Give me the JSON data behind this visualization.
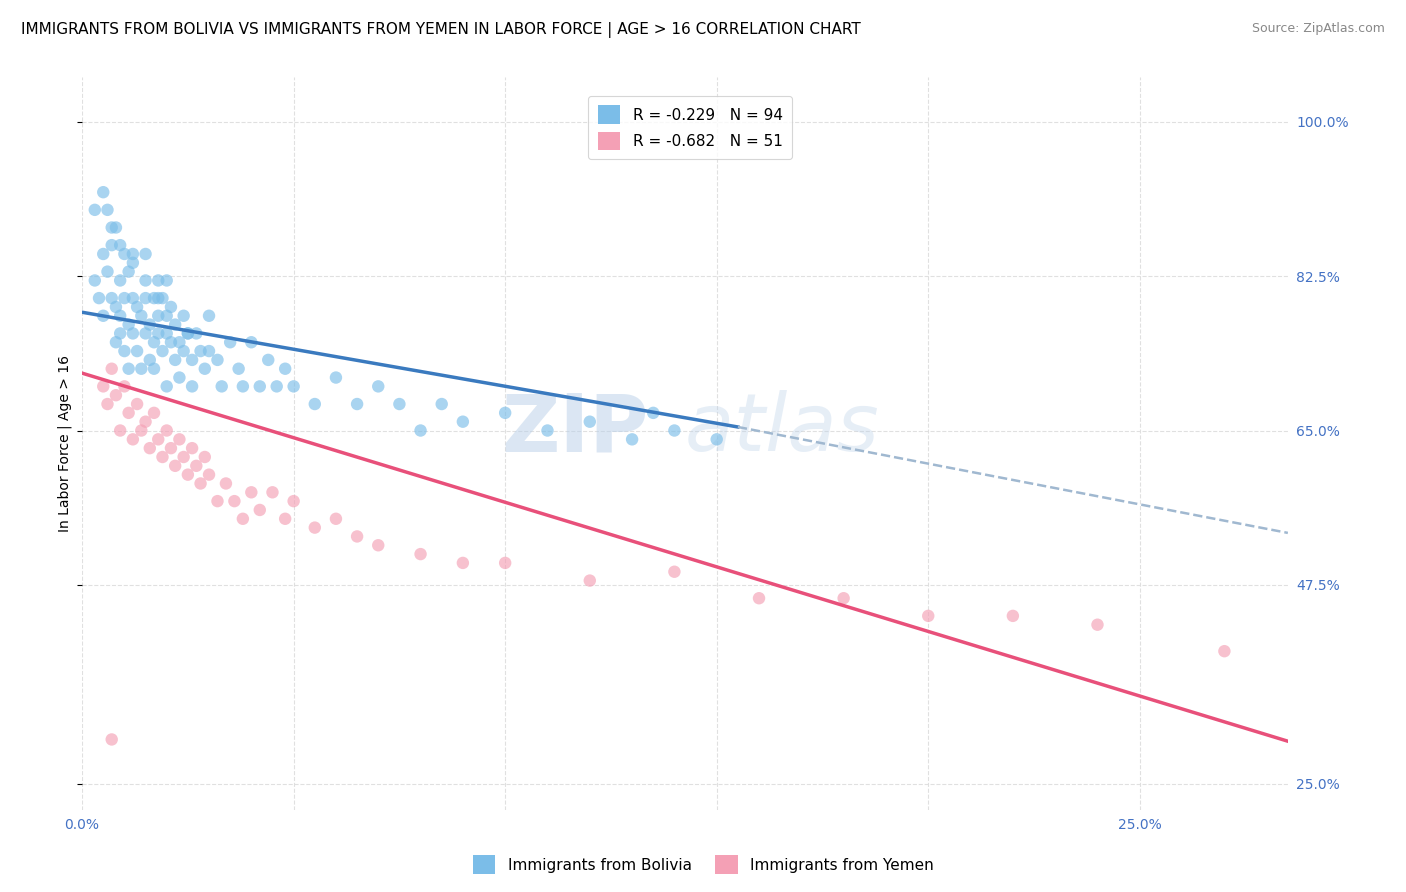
{
  "title": "IMMIGRANTS FROM BOLIVIA VS IMMIGRANTS FROM YEMEN IN LABOR FORCE | AGE > 16 CORRELATION CHART",
  "source": "Source: ZipAtlas.com",
  "ylabel": "In Labor Force | Age > 16",
  "right_yticks": [
    0.25,
    0.475,
    0.65,
    0.825,
    1.0
  ],
  "right_yticklabels": [
    "25.0%",
    "47.5%",
    "65.0%",
    "82.5%",
    "100.0%"
  ],
  "bottom_xticks": [
    0.0,
    0.05,
    0.1,
    0.15,
    0.2,
    0.25
  ],
  "xmin": 0.0,
  "xmax": 0.285,
  "ymin": 0.22,
  "ymax": 1.05,
  "bolivia_color": "#7bbde8",
  "yemen_color": "#f4a0b5",
  "bolivia_line_color": "#3a7abf",
  "yemen_line_color": "#e8507a",
  "dashed_line_color": "#a0b8d0",
  "legend_R_bolivia": "R = -0.229",
  "legend_N_bolivia": "N = 94",
  "legend_R_yemen": "R = -0.682",
  "legend_N_yemen": "N = 51",
  "bolivia_scatter_x": [
    0.003,
    0.004,
    0.005,
    0.005,
    0.006,
    0.006,
    0.007,
    0.007,
    0.008,
    0.008,
    0.008,
    0.009,
    0.009,
    0.009,
    0.01,
    0.01,
    0.01,
    0.011,
    0.011,
    0.011,
    0.012,
    0.012,
    0.012,
    0.013,
    0.013,
    0.014,
    0.014,
    0.015,
    0.015,
    0.015,
    0.016,
    0.016,
    0.017,
    0.017,
    0.017,
    0.018,
    0.018,
    0.018,
    0.019,
    0.019,
    0.02,
    0.02,
    0.02,
    0.021,
    0.021,
    0.022,
    0.022,
    0.023,
    0.023,
    0.024,
    0.024,
    0.025,
    0.026,
    0.026,
    0.027,
    0.028,
    0.029,
    0.03,
    0.032,
    0.033,
    0.035,
    0.037,
    0.038,
    0.04,
    0.042,
    0.044,
    0.046,
    0.048,
    0.05,
    0.055,
    0.06,
    0.065,
    0.07,
    0.075,
    0.08,
    0.085,
    0.09,
    0.1,
    0.11,
    0.12,
    0.13,
    0.135,
    0.14,
    0.15,
    0.003,
    0.005,
    0.007,
    0.009,
    0.012,
    0.015,
    0.018,
    0.02,
    0.025,
    0.03
  ],
  "bolivia_scatter_y": [
    0.82,
    0.8,
    0.78,
    0.85,
    0.83,
    0.9,
    0.8,
    0.86,
    0.75,
    0.79,
    0.88,
    0.76,
    0.82,
    0.78,
    0.74,
    0.8,
    0.85,
    0.72,
    0.77,
    0.83,
    0.76,
    0.8,
    0.85,
    0.74,
    0.79,
    0.78,
    0.72,
    0.76,
    0.8,
    0.85,
    0.73,
    0.77,
    0.75,
    0.8,
    0.72,
    0.76,
    0.82,
    0.78,
    0.74,
    0.8,
    0.76,
    0.82,
    0.7,
    0.75,
    0.79,
    0.77,
    0.73,
    0.75,
    0.71,
    0.78,
    0.74,
    0.76,
    0.73,
    0.7,
    0.76,
    0.74,
    0.72,
    0.78,
    0.73,
    0.7,
    0.75,
    0.72,
    0.7,
    0.75,
    0.7,
    0.73,
    0.7,
    0.72,
    0.7,
    0.68,
    0.71,
    0.68,
    0.7,
    0.68,
    0.65,
    0.68,
    0.66,
    0.67,
    0.65,
    0.66,
    0.64,
    0.67,
    0.65,
    0.64,
    0.9,
    0.92,
    0.88,
    0.86,
    0.84,
    0.82,
    0.8,
    0.78,
    0.76,
    0.74
  ],
  "yemen_scatter_x": [
    0.005,
    0.006,
    0.007,
    0.008,
    0.009,
    0.01,
    0.011,
    0.012,
    0.013,
    0.014,
    0.015,
    0.016,
    0.017,
    0.018,
    0.019,
    0.02,
    0.021,
    0.022,
    0.023,
    0.024,
    0.025,
    0.026,
    0.027,
    0.028,
    0.029,
    0.03,
    0.032,
    0.034,
    0.036,
    0.038,
    0.04,
    0.042,
    0.045,
    0.048,
    0.05,
    0.055,
    0.06,
    0.065,
    0.07,
    0.08,
    0.09,
    0.1,
    0.12,
    0.14,
    0.16,
    0.18,
    0.2,
    0.22,
    0.24,
    0.27,
    0.007
  ],
  "yemen_scatter_y": [
    0.7,
    0.68,
    0.72,
    0.69,
    0.65,
    0.7,
    0.67,
    0.64,
    0.68,
    0.65,
    0.66,
    0.63,
    0.67,
    0.64,
    0.62,
    0.65,
    0.63,
    0.61,
    0.64,
    0.62,
    0.6,
    0.63,
    0.61,
    0.59,
    0.62,
    0.6,
    0.57,
    0.59,
    0.57,
    0.55,
    0.58,
    0.56,
    0.58,
    0.55,
    0.57,
    0.54,
    0.55,
    0.53,
    0.52,
    0.51,
    0.5,
    0.5,
    0.48,
    0.49,
    0.46,
    0.46,
    0.44,
    0.44,
    0.43,
    0.4,
    0.3
  ],
  "bolivia_trend_x": [
    0.0,
    0.155
  ],
  "bolivia_trend_y": [
    0.784,
    0.654
  ],
  "dashed_trend_x": [
    0.155,
    0.285
  ],
  "dashed_trend_y": [
    0.654,
    0.534
  ],
  "yemen_trend_x": [
    0.0,
    0.285
  ],
  "yemen_trend_y": [
    0.715,
    0.298
  ],
  "watermark_zip": "ZIP",
  "watermark_atlas": "atlas",
  "background_color": "#ffffff",
  "grid_color": "#dddddd",
  "title_fontsize": 11,
  "axis_label_fontsize": 10,
  "tick_fontsize": 10,
  "legend_fontsize": 11,
  "right_tick_color": "#4472c4",
  "bottom_tick_color": "#4472c4"
}
